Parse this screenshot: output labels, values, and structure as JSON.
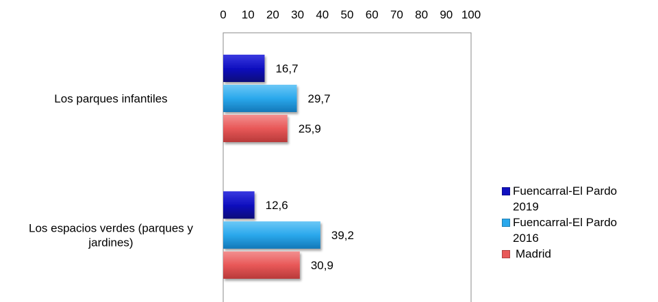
{
  "chart_data": {
    "type": "bar",
    "orientation": "horizontal",
    "categories": [
      "Los parques infantiles",
      "Los espacios verdes (parques y jardines)"
    ],
    "category_lines": [
      [
        "Los parques infantiles"
      ],
      [
        "Los espacios verdes (parques y",
        "jardines)"
      ]
    ],
    "series": [
      {
        "name": "Fuencarral-El Pardo 2019",
        "values": [
          16.7,
          12.6
        ],
        "labels": [
          "16,7",
          "12,6"
        ],
        "color": "#1010c0"
      },
      {
        "name": "Fuencarral-El Pardo 2016",
        "values": [
          29.7,
          39.2
        ],
        "labels": [
          "29,7",
          "39,2"
        ],
        "color": "#2aa8ec"
      },
      {
        "name": "Madrid",
        "values": [
          25.9,
          30.9
        ],
        "labels": [
          "25,9",
          "30,9"
        ],
        "color": "#e85858"
      }
    ],
    "xlim": [
      0,
      100
    ],
    "xticks": [
      0,
      10,
      20,
      30,
      40,
      50,
      60,
      70,
      80,
      90,
      100
    ],
    "xaxis_position": "top",
    "grid": false,
    "legend_position": "right"
  },
  "legend": {
    "items": [
      {
        "line1": "Fuencarral-El Pardo",
        "line2": "2019",
        "color": "#1010c0"
      },
      {
        "line1": "Fuencarral-El Pardo",
        "line2": "2016",
        "color": "#2aa8ec"
      },
      {
        "line1": "Madrid",
        "line2": "",
        "color": "#e85858"
      }
    ]
  }
}
